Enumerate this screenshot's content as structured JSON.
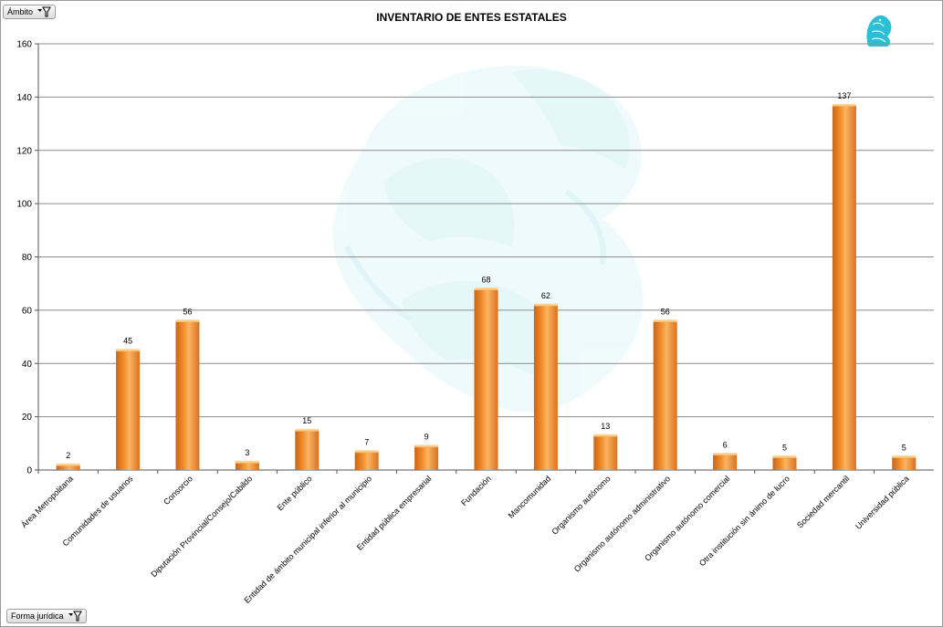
{
  "filters": {
    "top": {
      "label": "Ámbito"
    },
    "bottom": {
      "label": "Forma jurídica"
    }
  },
  "colors": {
    "bar_light": "#fbb563",
    "bar_mid": "#f5902c",
    "bar_dark": "#c8651a",
    "grid": "#8c8c8c",
    "watermark": "#d8f4f8",
    "logo": "#29bfd6"
  },
  "chart_data": {
    "type": "bar",
    "title": "INVENTARIO DE ENTES ESTATALES",
    "categories": [
      "Área Metropolitana",
      "Comunidades de usuarios",
      "Consorcio",
      "Diputación Provincial/Consejo/Cabildo",
      "Ente público",
      "Entidad de ámbito municipal inferior al municipio",
      "Entidad pública empresarial",
      "Fundación",
      "Mancomunidad",
      "Organismo autónomo",
      "Organismo autónomo administrativo",
      "Organismo autónomo comercial",
      "Otra institución sin ánimo de lucro",
      "Sociedad mercantil",
      "Universidad pública"
    ],
    "values": [
      2,
      45,
      56,
      3,
      15,
      7,
      9,
      68,
      62,
      13,
      56,
      6,
      5,
      137,
      5
    ],
    "ylim": [
      0,
      160
    ],
    "yticks": [
      0,
      20,
      40,
      60,
      80,
      100,
      120,
      140,
      160
    ],
    "grid": true,
    "data_labels": true
  }
}
